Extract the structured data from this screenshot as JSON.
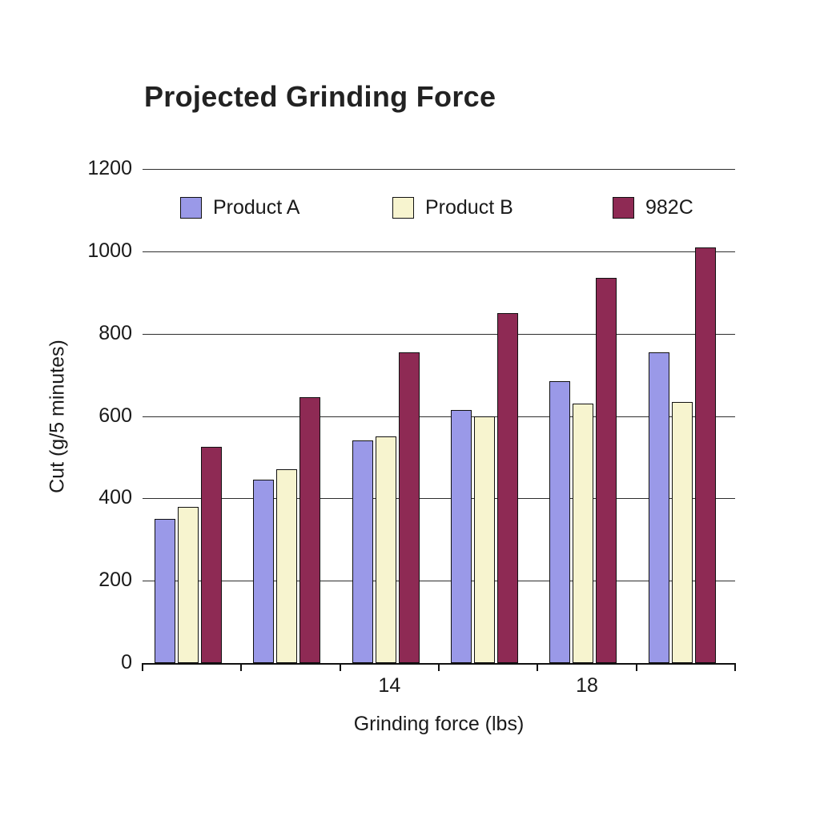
{
  "chart_data": {
    "type": "bar",
    "title": "Projected Grinding Force",
    "xlabel": "Grinding force (lbs)",
    "ylabel": "Cut (g/5 minutes)",
    "ylim": [
      0,
      1200
    ],
    "yticks": [
      0,
      200,
      400,
      600,
      800,
      1000,
      1200
    ],
    "categories": [
      "",
      "",
      "14",
      "",
      "18",
      ""
    ],
    "grid": true,
    "legend_position": "top-inside",
    "axis_color": "#111111",
    "series": [
      {
        "name": "Product A",
        "color": "#9a99e8",
        "values": [
          350,
          445,
          540,
          615,
          685,
          755
        ]
      },
      {
        "name": "Product B",
        "color": "#f7f4cf",
        "values": [
          380,
          470,
          550,
          600,
          630,
          635
        ]
      },
      {
        "name": "982C",
        "color": "#8e2a54",
        "values": [
          525,
          645,
          755,
          850,
          935,
          1010
        ]
      }
    ]
  }
}
